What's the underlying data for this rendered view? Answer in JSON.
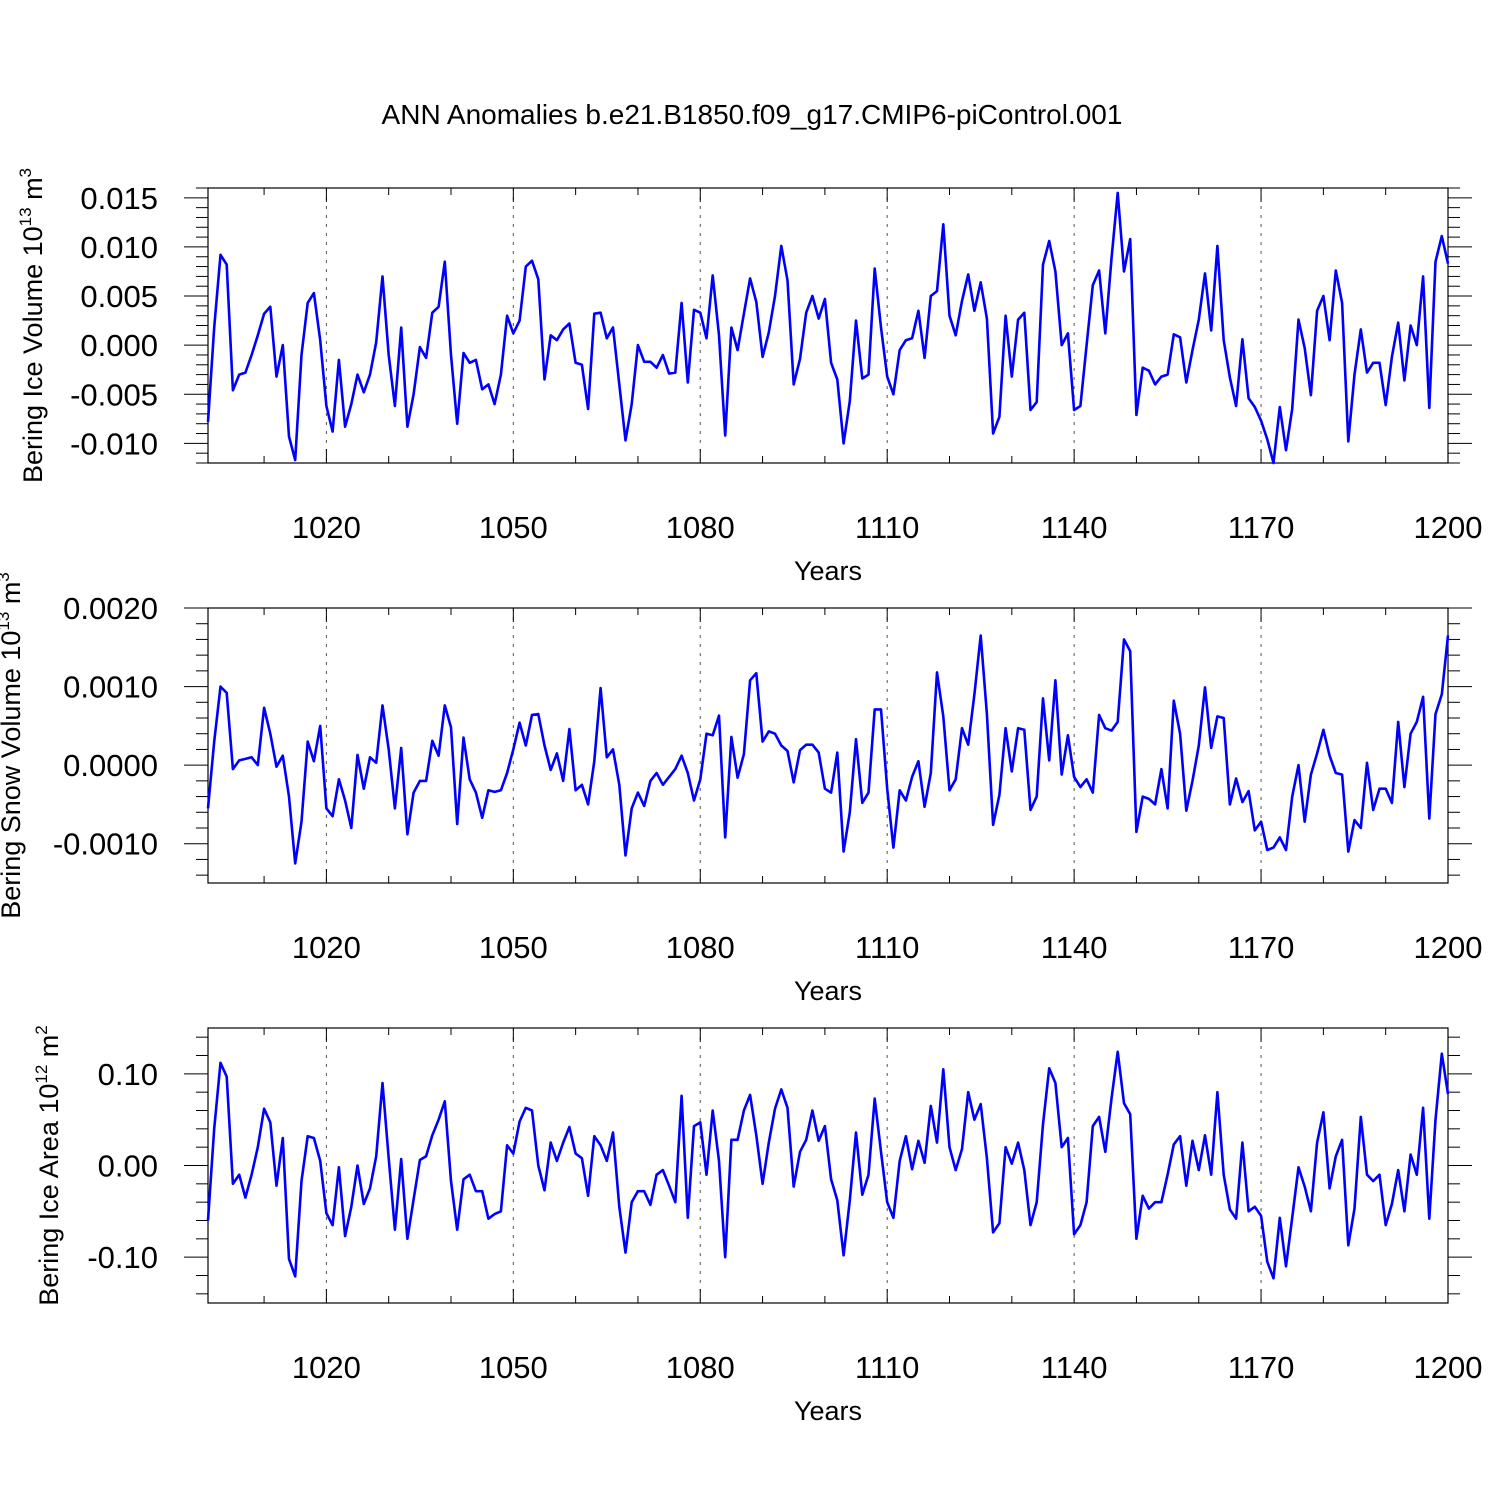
{
  "title": "ANN Anomalies b.e21.B1850.f09_g17.CMIP6-piControl.001",
  "line_color": "#0000ff",
  "chart_data": [
    {
      "type": "line",
      "ylabel_main": "Bering Ice Volume 10",
      "ylabel_exp": "13",
      "ylabel_unit": " m",
      "ylabel_unit_exp": "3",
      "xlabel": "Years",
      "xlim": [
        1001,
        1200
      ],
      "ylim": [
        -0.012,
        0.016
      ],
      "x_ticks": [
        1020,
        1050,
        1080,
        1110,
        1140,
        1170,
        1200
      ],
      "x_tick_labels": [
        "1020",
        "1050",
        "1080",
        "1110",
        "1140",
        "1170",
        "1200"
      ],
      "y_ticks": [
        -0.01,
        -0.005,
        0.0,
        0.005,
        0.01,
        0.015
      ],
      "y_tick_labels": [
        "-0.010",
        "-0.005",
        "0.000",
        "0.005",
        "0.010",
        "0.015"
      ],
      "y_minor": 0.001,
      "x_start": 1001,
      "values": [
        -0.0078,
        0.0018,
        0.0092,
        0.0082,
        -0.0046,
        -0.003,
        -0.0028,
        -0.001,
        0.001,
        0.0032,
        0.0039,
        -0.0032,
        0.0,
        -0.0093,
        -0.0117,
        -0.001,
        0.0043,
        0.0053,
        0.0005,
        -0.0062,
        -0.0088,
        -0.0015,
        -0.0083,
        -0.006,
        -0.003,
        -0.0048,
        -0.003,
        0.0003,
        0.007,
        -0.001,
        -0.0062,
        0.0018,
        -0.0083,
        -0.005,
        -0.0002,
        -0.0013,
        0.0033,
        0.0039,
        0.0085,
        -0.001,
        -0.008,
        -0.0008,
        -0.0018,
        -0.0015,
        -0.0045,
        -0.004,
        -0.006,
        -0.003,
        0.003,
        0.0012,
        0.0025,
        0.008,
        0.0086,
        0.0067,
        -0.0035,
        0.001,
        0.0005,
        0.0016,
        0.0022,
        -0.0018,
        -0.002,
        -0.0065,
        0.0032,
        0.0033,
        0.0007,
        0.0018,
        -0.004,
        -0.0097,
        -0.006,
        0.0,
        -0.0017,
        -0.0017,
        -0.0023,
        -0.001,
        -0.0029,
        -0.0028,
        0.0043,
        -0.0038,
        0.0036,
        0.0033,
        0.0007,
        0.0071,
        0.001,
        -0.0092,
        0.0018,
        -0.0005,
        0.0032,
        0.0068,
        0.0044,
        -0.0012,
        0.0013,
        0.005,
        0.0101,
        0.0066,
        -0.004,
        -0.0014,
        0.0033,
        0.005,
        0.0027,
        0.0047,
        -0.0018,
        -0.0035,
        -0.01,
        -0.0057,
        0.0025,
        -0.0034,
        -0.003,
        0.0078,
        0.0018,
        -0.0032,
        -0.005,
        -0.0005,
        0.0005,
        0.0007,
        0.0035,
        -0.0013,
        0.005,
        0.0055,
        0.0123,
        0.003,
        0.001,
        0.0045,
        0.0072,
        0.0035,
        0.0064,
        0.0027,
        -0.009,
        -0.0073,
        0.003,
        -0.0032,
        0.0026,
        0.0033,
        -0.0066,
        -0.0058,
        0.0082,
        0.0106,
        0.0075,
        0.0,
        0.0012,
        -0.0066,
        -0.0062,
        0.0,
        0.0061,
        0.0076,
        0.0012,
        0.0088,
        0.0155,
        0.0075,
        0.0108,
        -0.0071,
        -0.0023,
        -0.0026,
        -0.004,
        -0.0032,
        -0.003,
        0.0011,
        0.0008,
        -0.0038,
        -0.0005,
        0.0026,
        0.0073,
        0.0015,
        0.0101,
        0.0005,
        -0.0033,
        -0.0062,
        0.0006,
        -0.0054,
        -0.0063,
        -0.0077,
        -0.0096,
        -0.012,
        -0.0063,
        -0.0107,
        -0.0065,
        0.0026,
        -0.0003,
        -0.0051,
        0.0035,
        0.005,
        0.0005,
        0.0076,
        0.0043,
        -0.0098,
        -0.003,
        0.0016,
        -0.0028,
        -0.0018,
        -0.0018,
        -0.0061,
        -0.0012,
        0.0023,
        -0.0036,
        0.002,
        0.0,
        0.007,
        -0.0064,
        0.0085,
        0.0111,
        0.0083
      ]
    },
    {
      "type": "line",
      "ylabel_main": "Bering Snow Volume 10",
      "ylabel_exp": "13",
      "ylabel_unit": " m",
      "ylabel_unit_exp": "3",
      "xlabel": "Years",
      "xlim": [
        1001,
        1200
      ],
      "ylim": [
        -0.0015,
        0.002
      ],
      "x_ticks": [
        1020,
        1050,
        1080,
        1110,
        1140,
        1170,
        1200
      ],
      "x_tick_labels": [
        "1020",
        "1050",
        "1080",
        "1110",
        "1140",
        "1170",
        "1200"
      ],
      "y_ticks": [
        -0.001,
        0.0,
        0.001,
        0.002
      ],
      "y_tick_labels": [
        "-0.0010",
        "0.0000",
        "0.0010",
        "0.0020"
      ],
      "y_minor": 0.0002,
      "x_start": 1001,
      "values": [
        -0.00055,
        0.0003,
        0.001,
        0.00092,
        -5e-05,
        6e-05,
        8e-05,
        0.0001,
        0.0,
        0.00073,
        0.0004,
        -2e-05,
        0.00012,
        -0.0004,
        -0.00125,
        -0.00072,
        0.0003,
        5e-05,
        0.0005,
        -0.00055,
        -0.00065,
        -0.00018,
        -0.00045,
        -0.0008,
        0.00013,
        -0.0003,
        0.0001,
        3e-05,
        0.00076,
        0.0002,
        -0.00055,
        0.00022,
        -0.00088,
        -0.00035,
        -0.0002,
        -0.0002,
        0.00031,
        0.00012,
        0.00076,
        0.00048,
        -0.00075,
        0.00035,
        -0.00018,
        -0.00035,
        -0.00067,
        -0.00032,
        -0.00034,
        -0.00032,
        -0.0001,
        0.0002,
        0.00054,
        0.00025,
        0.00064,
        0.00065,
        0.00025,
        -6e-05,
        0.00015,
        -0.0002,
        0.00046,
        -0.00032,
        -0.00025,
        -0.0005,
        5e-05,
        0.00098,
        0.0001,
        0.0002,
        -0.00025,
        -0.00115,
        -0.00055,
        -0.00035,
        -0.00052,
        -0.0002,
        -0.0001,
        -0.00025,
        -0.00015,
        -5e-05,
        0.00012,
        -0.0001,
        -0.00045,
        -0.00018,
        0.0004,
        0.00038,
        0.00063,
        -0.00092,
        0.00036,
        -0.00016,
        0.00014,
        0.00108,
        0.00117,
        0.0003,
        0.00043,
        0.0004,
        0.00025,
        0.00018,
        -0.00022,
        0.00019,
        0.00026,
        0.00026,
        0.00016,
        -0.0003,
        -0.00035,
        0.00016,
        -0.0011,
        -0.0006,
        0.00033,
        -0.00048,
        -0.00035,
        0.00071,
        0.00071,
        -0.0003,
        -0.00105,
        -0.00032,
        -0.00045,
        -0.00015,
        5e-05,
        -0.00053,
        -0.0001,
        0.00118,
        0.00062,
        -0.00032,
        -0.00018,
        0.00047,
        0.00026,
        0.0009,
        0.00165,
        0.00065,
        -0.00076,
        -0.00038,
        0.00047,
        -8e-05,
        0.00047,
        0.00045,
        -0.00057,
        -0.0004,
        0.00085,
        6e-05,
        0.00108,
        -0.00012,
        0.00038,
        -0.00015,
        -0.00028,
        -0.00018,
        -0.00035,
        0.00064,
        0.00047,
        0.00044,
        0.00055,
        0.0016,
        0.00145,
        -0.00085,
        -0.0004,
        -0.00043,
        -0.0005,
        -5e-05,
        -0.00055,
        0.00082,
        0.0004,
        -0.00058,
        -0.0002,
        0.00025,
        0.00099,
        0.00022,
        0.00062,
        0.0006,
        -0.0005,
        -0.00017,
        -0.00047,
        -0.00033,
        -0.00083,
        -0.00072,
        -0.00108,
        -0.00105,
        -0.00092,
        -0.00108,
        -0.0004,
        0.0,
        -0.00072,
        -0.00012,
        0.00015,
        0.00045,
        0.00012,
        -0.0001,
        -0.00012,
        -0.0011,
        -0.0007,
        -0.0008,
        3e-05,
        -0.00057,
        -0.0003,
        -0.0003,
        -0.00048,
        0.00055,
        -0.00028,
        0.0004,
        0.00055,
        0.00087,
        -0.00068,
        0.00065,
        0.0009,
        0.00165
      ]
    },
    {
      "type": "line",
      "ylabel_main": "Bering Ice Area 10",
      "ylabel_exp": "12",
      "ylabel_unit": " m",
      "ylabel_unit_exp": "2",
      "xlabel": "Years",
      "xlim": [
        1001,
        1200
      ],
      "ylim": [
        -0.15,
        0.15
      ],
      "x_ticks": [
        1020,
        1050,
        1080,
        1110,
        1140,
        1170,
        1200
      ],
      "x_tick_labels": [
        "1020",
        "1050",
        "1080",
        "1110",
        "1140",
        "1170",
        "1200"
      ],
      "y_ticks": [
        -0.1,
        0.0,
        0.1
      ],
      "y_tick_labels": [
        "-0.10",
        "0.00",
        "0.10"
      ],
      "y_minor": 0.02,
      "x_start": 1001,
      "values": [
        -0.06,
        0.04,
        0.112,
        0.097,
        -0.02,
        -0.01,
        -0.035,
        -0.01,
        0.02,
        0.062,
        0.047,
        -0.022,
        0.03,
        -0.102,
        -0.121,
        -0.017,
        0.032,
        0.03,
        0.005,
        -0.052,
        -0.065,
        -0.002,
        -0.077,
        -0.045,
        0.0,
        -0.042,
        -0.025,
        0.01,
        0.09,
        0.008,
        -0.07,
        0.007,
        -0.08,
        -0.037,
        0.006,
        0.01,
        0.033,
        0.05,
        0.07,
        -0.017,
        -0.07,
        -0.015,
        -0.01,
        -0.028,
        -0.028,
        -0.058,
        -0.053,
        -0.05,
        0.022,
        0.013,
        0.048,
        0.063,
        0.06,
        0.0,
        -0.027,
        0.025,
        0.005,
        0.025,
        0.042,
        0.013,
        0.008,
        -0.033,
        0.032,
        0.022,
        0.005,
        0.036,
        -0.045,
        -0.095,
        -0.04,
        -0.028,
        -0.028,
        -0.043,
        -0.01,
        -0.005,
        -0.022,
        -0.04,
        0.076,
        -0.057,
        0.043,
        0.047,
        -0.01,
        0.06,
        0.005,
        -0.1,
        0.028,
        0.028,
        0.06,
        0.077,
        0.033,
        -0.02,
        0.025,
        0.062,
        0.083,
        0.063,
        -0.023,
        0.015,
        0.028,
        0.06,
        0.027,
        0.043,
        -0.015,
        -0.038,
        -0.098,
        -0.038,
        0.036,
        -0.032,
        -0.01,
        0.073,
        0.015,
        -0.04,
        -0.057,
        0.005,
        0.032,
        -0.004,
        0.027,
        0.003,
        0.065,
        0.025,
        0.105,
        0.02,
        -0.005,
        0.018,
        0.08,
        0.05,
        0.067,
        0.008,
        -0.073,
        -0.063,
        0.02,
        0.002,
        0.025,
        -0.005,
        -0.065,
        -0.04,
        0.045,
        0.106,
        0.09,
        0.02,
        0.03,
        -0.075,
        -0.065,
        -0.04,
        0.043,
        0.053,
        0.015,
        0.073,
        0.124,
        0.068,
        0.056,
        -0.08,
        -0.033,
        -0.047,
        -0.04,
        -0.04,
        -0.01,
        0.023,
        0.032,
        -0.022,
        0.027,
        -0.005,
        0.033,
        -0.01,
        0.08,
        -0.01,
        -0.048,
        -0.058,
        0.025,
        -0.05,
        -0.045,
        -0.055,
        -0.105,
        -0.123,
        -0.057,
        -0.11,
        -0.057,
        -0.002,
        -0.023,
        -0.05,
        0.025,
        0.058,
        -0.025,
        0.01,
        0.028,
        -0.087,
        -0.047,
        0.053,
        -0.01,
        -0.017,
        -0.01,
        -0.065,
        -0.042,
        -0.005,
        -0.05,
        0.012,
        -0.01,
        0.063,
        -0.058,
        0.05,
        0.122,
        0.078
      ]
    }
  ]
}
